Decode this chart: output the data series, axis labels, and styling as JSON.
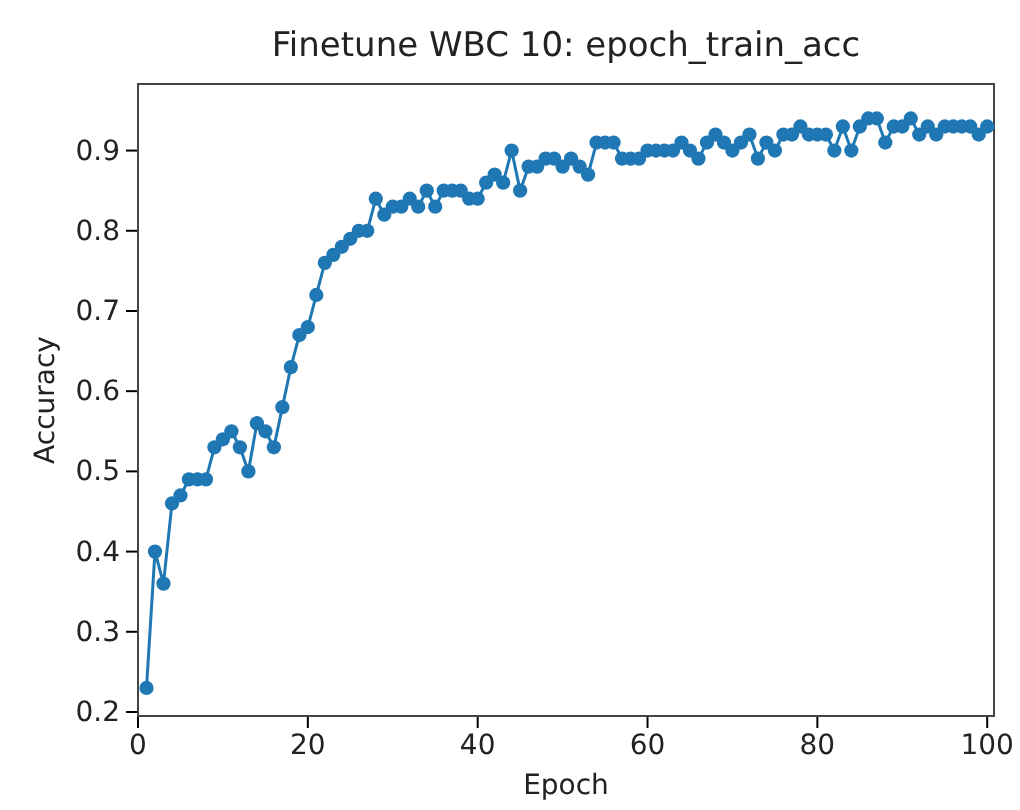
{
  "chart_data": {
    "type": "line",
    "title": "Finetune WBC 10: epoch_train_acc",
    "xlabel": "Epoch",
    "ylabel": "Accuracy",
    "x": [
      1,
      2,
      3,
      4,
      5,
      6,
      7,
      8,
      9,
      10,
      11,
      12,
      13,
      14,
      15,
      16,
      17,
      18,
      19,
      20,
      21,
      22,
      23,
      24,
      25,
      26,
      27,
      28,
      29,
      30,
      31,
      32,
      33,
      34,
      35,
      36,
      37,
      38,
      39,
      40,
      41,
      42,
      43,
      44,
      45,
      46,
      47,
      48,
      49,
      50,
      51,
      52,
      53,
      54,
      55,
      56,
      57,
      58,
      59,
      60,
      61,
      62,
      63,
      64,
      65,
      66,
      67,
      68,
      69,
      70,
      71,
      72,
      73,
      74,
      75,
      76,
      77,
      78,
      79,
      80,
      81,
      82,
      83,
      84,
      85,
      86,
      87,
      88,
      89,
      90,
      91,
      92,
      93,
      94,
      95,
      96,
      97,
      98,
      99,
      100
    ],
    "series": [
      {
        "color": "#1f77b4",
        "values": [
          0.23,
          0.4,
          0.36,
          0.46,
          0.47,
          0.49,
          0.49,
          0.49,
          0.53,
          0.54,
          0.55,
          0.53,
          0.5,
          0.56,
          0.55,
          0.53,
          0.58,
          0.63,
          0.67,
          0.68,
          0.72,
          0.76,
          0.77,
          0.78,
          0.79,
          0.8,
          0.8,
          0.84,
          0.82,
          0.83,
          0.83,
          0.84,
          0.83,
          0.85,
          0.83,
          0.85,
          0.85,
          0.85,
          0.84,
          0.84,
          0.86,
          0.87,
          0.86,
          0.9,
          0.85,
          0.88,
          0.88,
          0.89,
          0.89,
          0.88,
          0.89,
          0.88,
          0.87,
          0.91,
          0.91,
          0.91,
          0.89,
          0.89,
          0.89,
          0.9,
          0.9,
          0.9,
          0.9,
          0.91,
          0.9,
          0.89,
          0.91,
          0.92,
          0.91,
          0.9,
          0.91,
          0.92,
          0.89,
          0.91,
          0.9,
          0.92,
          0.92,
          0.93,
          0.92,
          0.92,
          0.92,
          0.9,
          0.93,
          0.9,
          0.93,
          0.94,
          0.94,
          0.91,
          0.93,
          0.93,
          0.94,
          0.92,
          0.93,
          0.92,
          0.93,
          0.93,
          0.93,
          0.93,
          0.92,
          0.93
        ]
      }
    ],
    "xlim": [
      0,
      100.8
    ],
    "ylim": [
      0.195,
      0.983
    ],
    "xticks": [
      0,
      20,
      40,
      60,
      80,
      100
    ],
    "yticks": [
      {
        "value": 0.2,
        "label": "0.2"
      },
      {
        "value": 0.3,
        "label": "0.3"
      },
      {
        "value": 0.4,
        "label": "0.4"
      },
      {
        "value": 0.5,
        "label": "0.5"
      },
      {
        "value": 0.6,
        "label": "0.6"
      },
      {
        "value": 0.7,
        "label": "0.7"
      },
      {
        "value": 0.8,
        "label": "0.8"
      },
      {
        "value": 0.9,
        "label": "0.9"
      }
    ],
    "marker": "circle",
    "grid": false
  }
}
